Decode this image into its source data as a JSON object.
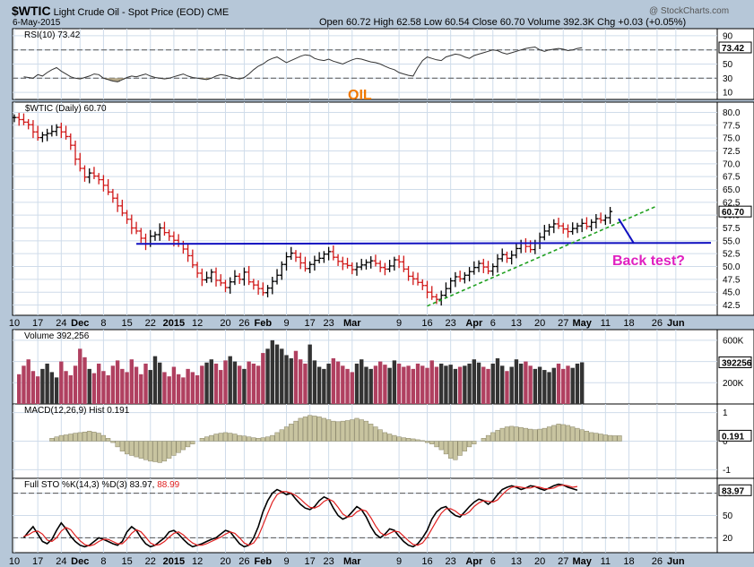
{
  "header": {
    "symbol": "$WTIC",
    "name": "Light Crude Oil - Spot Price (EOD)",
    "exchange": "CME",
    "watermark": "@ StockCharts.com",
    "date": "6-May-2015",
    "ohlc_text": "Open 60.72  High 62.58  Low 60.54  Close 60.70  Volume 392.3K  Chg +0.03 (+0.05%)"
  },
  "annotations": {
    "oil_label": "OIL",
    "back_test_label": "Back test?",
    "oil_color": "#f07800",
    "back_test_color": "#e020c0"
  },
  "x_axis": {
    "labels": [
      "10",
      "17",
      "24",
      "Dec",
      "8",
      "15",
      "22",
      "2015",
      "12",
      "20",
      "26",
      "Feb",
      "9",
      "17",
      "23",
      "Mar",
      "9",
      "16",
      "23",
      "Apr",
      "6",
      "13",
      "20",
      "27",
      "May",
      "11",
      "18",
      "26",
      "Jun"
    ],
    "label_index": [
      0,
      5,
      10,
      14,
      19,
      24,
      29,
      34,
      39,
      45,
      49,
      53,
      58,
      63,
      67,
      72,
      82,
      88,
      93,
      98,
      102,
      107,
      112,
      117,
      121,
      126,
      131,
      137,
      141
    ]
  },
  "chart_data": [
    {
      "type": "line",
      "panel": "rsi",
      "title": "RSI(10) 73.42",
      "ylim": [
        0,
        100
      ],
      "ticks": [
        10,
        30,
        50,
        70,
        90
      ],
      "last_value_label": "73.42",
      "reference_lines": [
        30,
        70
      ],
      "values": [
        32,
        31,
        30,
        35,
        33,
        38,
        42,
        45,
        40,
        36,
        32,
        30,
        29,
        31,
        33,
        36,
        35,
        30,
        28,
        26,
        25,
        28,
        31,
        33,
        32,
        34,
        36,
        33,
        31,
        30,
        29,
        30,
        32,
        34,
        36,
        33,
        31,
        30,
        29,
        28,
        30,
        33,
        35,
        34,
        32,
        30,
        29,
        31,
        36,
        42,
        47,
        50,
        55,
        58,
        60,
        56,
        52,
        55,
        58,
        61,
        63,
        62,
        58,
        56,
        55,
        57,
        54,
        52,
        50,
        53,
        56,
        58,
        57,
        55,
        53,
        52,
        50,
        47,
        44,
        42,
        38,
        36,
        34,
        33,
        45,
        55,
        60,
        58,
        56,
        55,
        60,
        62,
        64,
        63,
        60,
        58,
        62,
        64,
        66,
        68,
        70,
        69,
        66,
        64,
        66,
        68,
        70,
        72,
        73,
        74,
        70,
        68,
        70,
        71,
        72,
        71,
        69,
        70,
        72,
        73
      ]
    },
    {
      "type": "bar",
      "panel": "price",
      "title": "$WTIC (Daily) 60.70",
      "ylim": [
        40.5,
        82
      ],
      "ticks": [
        42.5,
        45.0,
        47.5,
        50.0,
        52.5,
        55.0,
        57.5,
        60.0,
        62.5,
        65.0,
        67.5,
        70.0,
        72.5,
        75.0,
        77.5,
        80.0
      ],
      "last_value_label": "60.70",
      "close": [
        79,
        78.6,
        78.1,
        77.6,
        76.2,
        75.1,
        75.6,
        75.9,
        76.3,
        77.1,
        76.2,
        75.3,
        73.6,
        70.9,
        69.1,
        67.4,
        68.2,
        67.6,
        66.9,
        65.8,
        64.5,
        63.3,
        61.8,
        60.4,
        59.2,
        57.5,
        56.9,
        55.5,
        54.4,
        55.9,
        56.2,
        57.5,
        56.6,
        55.9,
        55.1,
        54.4,
        53.4,
        52.1,
        50.3,
        48.7,
        47.4,
        47.8,
        48.9,
        47.3,
        46.8,
        45.9,
        47.0,
        48.1,
        47.5,
        48.9,
        47.0,
        46.4,
        45.7,
        44.9,
        45.8,
        47.1,
        48.3,
        50.4,
        51.9,
        52.6,
        51.8,
        50.7,
        49.6,
        50.4,
        51.2,
        51.6,
        52.4,
        52.9,
        51.8,
        51.0,
        50.5,
        50.2,
        49.4,
        49.9,
        50.3,
        50.8,
        51.1,
        50.6,
        49.8,
        49.5,
        50.1,
        51.3,
        50.9,
        49.5,
        48.1,
        47.6,
        46.9,
        46.3,
        45.0,
        44.1,
        43.6,
        44.4,
        45.7,
        47.2,
        48.0,
        47.6,
        48.3,
        49.0,
        49.8,
        50.6,
        49.9,
        49.1,
        50.0,
        51.5,
        52.3,
        51.6,
        52.2,
        53.5,
        54.6,
        53.9,
        53.3,
        54.6,
        55.7,
        56.9,
        57.7,
        58.3,
        57.9,
        57.3,
        56.8,
        57.4,
        57.9,
        58.4,
        57.8,
        58.6,
        59.3,
        59.0,
        59.5,
        60.7
      ],
      "range_low": 42.0,
      "range_high": 62.58
    },
    {
      "type": "bar",
      "panel": "volume",
      "title": "Volume 392,256",
      "ylim": [
        0,
        700000
      ],
      "ticks_labels": [
        "200K",
        "400K",
        "600K"
      ],
      "ticks": [
        200000,
        400000,
        600000
      ],
      "last_value_label": "392256",
      "values": [
        280000,
        360000,
        420000,
        310000,
        260000,
        330000,
        380000,
        300000,
        250000,
        400000,
        310000,
        270000,
        360000,
        520000,
        440000,
        330000,
        290000,
        380000,
        310000,
        270000,
        360000,
        410000,
        330000,
        300000,
        420000,
        350000,
        280000,
        380000,
        320000,
        450000,
        390000,
        300000,
        260000,
        350000,
        280000,
        250000,
        330000,
        300000,
        270000,
        360000,
        390000,
        420000,
        380000,
        320000,
        410000,
        450000,
        400000,
        360000,
        330000,
        400000,
        380000,
        360000,
        480000,
        520000,
        600000,
        560000,
        520000,
        460000,
        430000,
        500000,
        420000,
        380000,
        560000,
        410000,
        350000,
        330000,
        380000,
        430000,
        400000,
        360000,
        330000,
        300000,
        380000,
        420000,
        350000,
        330000,
        360000,
        400000,
        370000,
        340000,
        410000,
        380000,
        350000,
        360000,
        330000,
        380000,
        360000,
        340000,
        410000,
        350000,
        380000,
        360000,
        370000,
        330000,
        350000,
        360000,
        380000,
        420000,
        390000,
        350000,
        330000,
        380000,
        430000,
        360000,
        310000,
        350000,
        420000,
        380000,
        400000,
        360000,
        330000,
        350000,
        320000,
        300000,
        340000,
        380000,
        330000,
        360000,
        340000,
        380000,
        392256
      ]
    },
    {
      "type": "bar",
      "panel": "macd",
      "title": "MACD(12,26,9) Hist 0.191",
      "ylim": [
        -1.3,
        1.3
      ],
      "ticks": [
        -1,
        0,
        1
      ],
      "last_value_label": "0.191",
      "values": [
        0.1,
        0.15,
        0.2,
        0.22,
        0.25,
        0.28,
        0.3,
        0.32,
        0.35,
        0.32,
        0.28,
        0.2,
        0.1,
        -0.05,
        -0.2,
        -0.35,
        -0.45,
        -0.5,
        -0.55,
        -0.6,
        -0.65,
        -0.7,
        -0.72,
        -0.75,
        -0.7,
        -0.6,
        -0.5,
        -0.4,
        -0.3,
        -0.2,
        -0.1,
        0.0,
        0.1,
        0.15,
        0.2,
        0.25,
        0.28,
        0.3,
        0.28,
        0.25,
        0.2,
        0.18,
        0.15,
        0.12,
        0.1,
        0.12,
        0.15,
        0.2,
        0.3,
        0.4,
        0.5,
        0.6,
        0.7,
        0.8,
        0.85,
        0.9,
        0.88,
        0.85,
        0.8,
        0.75,
        0.7,
        0.68,
        0.7,
        0.72,
        0.75,
        0.8,
        0.75,
        0.7,
        0.6,
        0.5,
        0.4,
        0.3,
        0.25,
        0.2,
        0.15,
        0.12,
        0.1,
        0.08,
        0.05,
        0.02,
        -0.05,
        -0.1,
        -0.2,
        -0.3,
        -0.45,
        -0.6,
        -0.65,
        -0.5,
        -0.35,
        -0.2,
        -0.1,
        0.0,
        0.1,
        0.2,
        0.3,
        0.38,
        0.45,
        0.5,
        0.52,
        0.5,
        0.48,
        0.45,
        0.42,
        0.4,
        0.42,
        0.45,
        0.5,
        0.55,
        0.6,
        0.58,
        0.55,
        0.5,
        0.45,
        0.4,
        0.35,
        0.3,
        0.28,
        0.25,
        0.22,
        0.2,
        0.19,
        0.19
      ]
    },
    {
      "type": "line",
      "panel": "sto",
      "title": "Full STO %K(14,3) %D(3) 83.97, 88.99",
      "ylim": [
        0,
        100
      ],
      "ticks": [
        20,
        50,
        80
      ],
      "last_value_label": "83.97",
      "reference_lines": [
        20,
        80
      ],
      "series": [
        {
          "name": "%K(14,3)",
          "values": [
            20,
            28,
            35,
            25,
            15,
            12,
            18,
            30,
            40,
            32,
            22,
            15,
            10,
            8,
            10,
            15,
            20,
            18,
            15,
            12,
            10,
            15,
            28,
            35,
            30,
            20,
            12,
            8,
            10,
            15,
            20,
            28,
            30,
            25,
            18,
            12,
            8,
            10,
            12,
            15,
            18,
            20,
            25,
            30,
            28,
            20,
            12,
            8,
            10,
            20,
            35,
            55,
            70,
            80,
            85,
            82,
            78,
            80,
            72,
            65,
            60,
            58,
            62,
            70,
            75,
            72,
            60,
            50,
            45,
            48,
            55,
            62,
            58,
            48,
            35,
            25,
            20,
            25,
            32,
            30,
            22,
            15,
            10,
            8,
            12,
            20,
            30,
            45,
            55,
            60,
            62,
            55,
            50,
            48,
            55,
            62,
            68,
            72,
            70,
            65,
            70,
            78,
            85,
            88,
            90,
            88,
            85,
            87,
            90,
            89,
            86,
            84,
            87,
            90,
            92,
            91,
            88,
            86,
            84
          ],
          "color": "#000000"
        },
        {
          "name": "%D(3)",
          "values": [
            22,
            24,
            28,
            29,
            25,
            17,
            15,
            20,
            29,
            34,
            31,
            23,
            16,
            11,
            9,
            11,
            15,
            18,
            18,
            15,
            12,
            12,
            18,
            26,
            31,
            28,
            21,
            13,
            10,
            11,
            15,
            21,
            26,
            28,
            24,
            18,
            13,
            10,
            10,
            12,
            15,
            18,
            21,
            25,
            28,
            26,
            20,
            13,
            10,
            13,
            22,
            37,
            53,
            68,
            78,
            82,
            82,
            80,
            77,
            72,
            66,
            61,
            60,
            63,
            69,
            72,
            69,
            61,
            52,
            48,
            49,
            55,
            58,
            56,
            47,
            36,
            27,
            23,
            26,
            29,
            28,
            22,
            16,
            11,
            10,
            13,
            21,
            32,
            43,
            53,
            59,
            59,
            56,
            51,
            51,
            55,
            62,
            67,
            70,
            69,
            68,
            71,
            78,
            84,
            88,
            89,
            88,
            87,
            87,
            89,
            88,
            86,
            86,
            87,
            90,
            91,
            90,
            88,
            89
          ],
          "color": "#e02020"
        }
      ]
    }
  ]
}
